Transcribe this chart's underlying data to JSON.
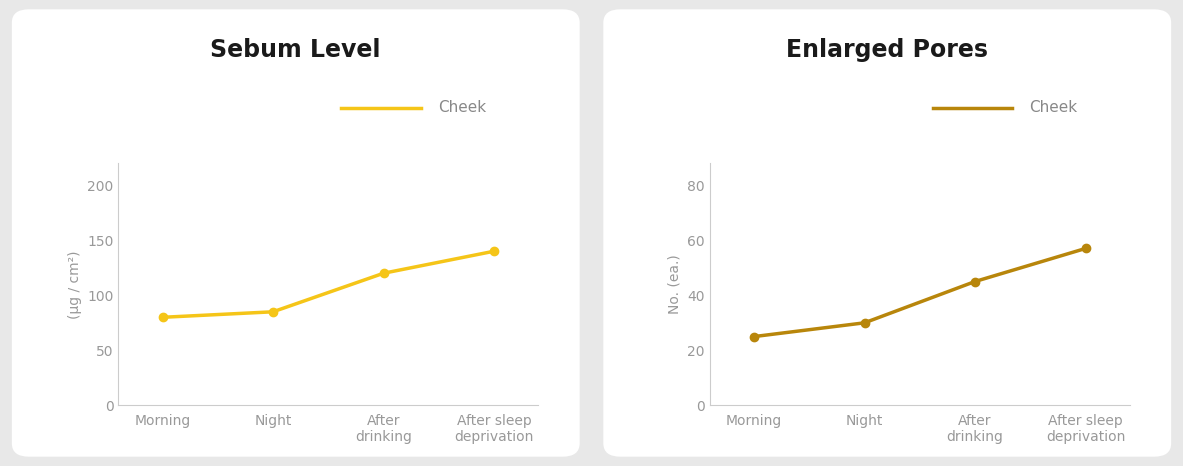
{
  "chart1": {
    "title": "Sebum Level",
    "categories": [
      "Morning",
      "Night",
      "After\ndrinking",
      "After sleep\ndeprivation"
    ],
    "cheek_values": [
      80,
      85,
      120,
      140
    ],
    "ylabel": "(μg / cm²)",
    "yticks": [
      0,
      50,
      100,
      150,
      200
    ],
    "ylim": [
      0,
      220
    ],
    "line_color": "#F5C518",
    "legend_label": "Cheek",
    "plot_bg": "#ffffff"
  },
  "chart2": {
    "title": "Enlarged Pores",
    "categories": [
      "Morning",
      "Night",
      "After\ndrinking",
      "After sleep\ndeprivation"
    ],
    "cheek_values": [
      25,
      30,
      45,
      57
    ],
    "ylabel": "No. (ea.)",
    "yticks": [
      0,
      20,
      40,
      60,
      80
    ],
    "ylim": [
      0,
      88
    ],
    "line_color": "#B8860B",
    "legend_label": "Cheek",
    "plot_bg": "#ffffff"
  },
  "figure_bg": "#e8e8e8",
  "title_fontsize": 17,
  "label_fontsize": 10,
  "tick_fontsize": 10,
  "legend_fontsize": 11
}
